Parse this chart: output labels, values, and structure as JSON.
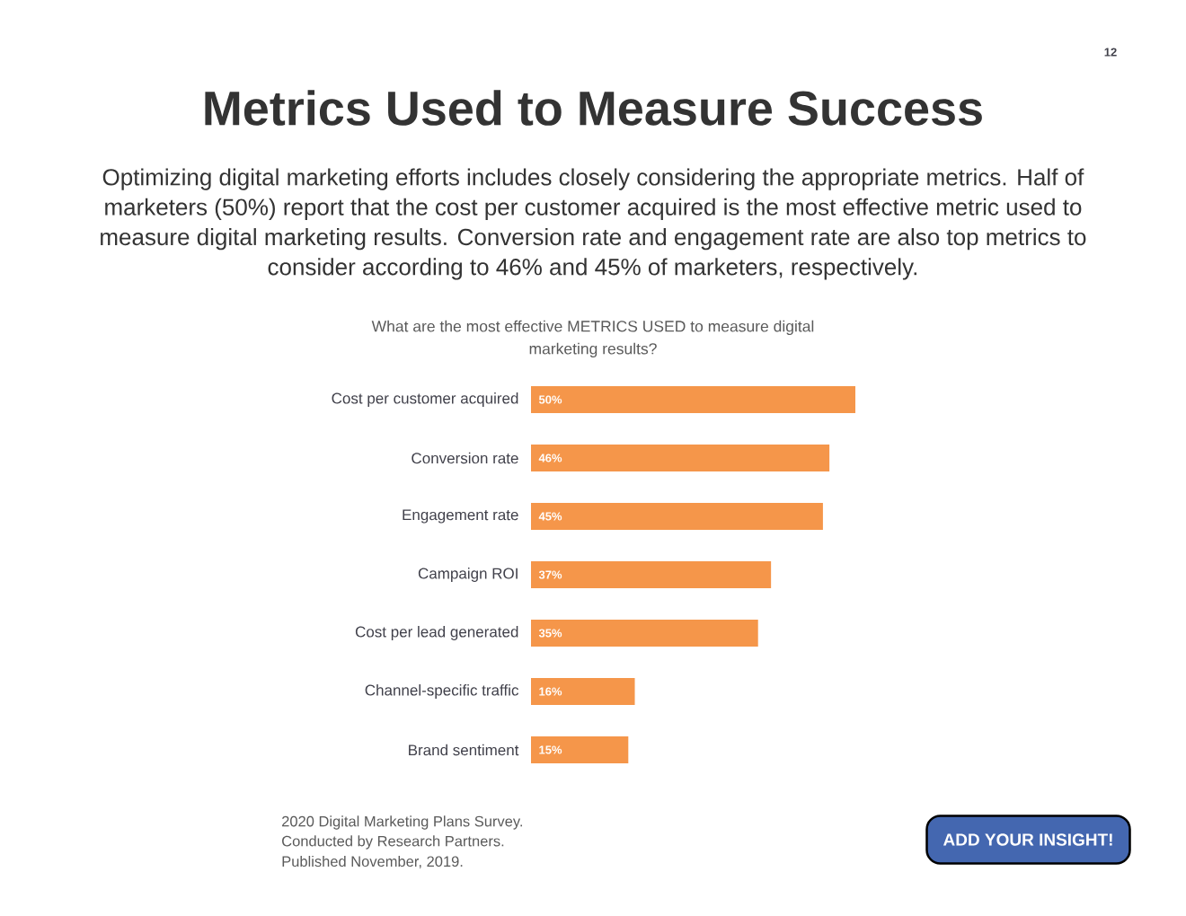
{
  "chart_data": {
    "type": "bar",
    "orientation": "horizontal",
    "title": "Metrics Used to Measure Success",
    "subtitle": "Optimizing digital marketing efforts includes closely considering the appropriate metrics. Half of marketers (50%) report that the cost per customer acquired is the most effective metric used to measure digital marketing results. Conversion rate and engagement rate are also top metrics to consider according to 46% and 45% of marketers, respectively.",
    "categories": [
      "Cost per customer acquired",
      "Conversion rate",
      "Engagement rate",
      "Campaign ROI",
      "Cost per lead generated",
      "Channel-specific traffic",
      "Brand sentiment"
    ],
    "values": [
      50,
      46,
      45,
      37,
      35,
      16,
      15
    ],
    "value_labels": [
      "50%",
      "46%",
      "45%",
      "37%",
      "35%",
      "16%",
      "15%"
    ],
    "color": "#f5964a",
    "tick_labels": "y",
    "annotations": [
      "12",
      "What are the most effective METRICS USED to measure digital marketing results?",
      "2020 Digital Marketing Plans Survey.",
      "Conducted by Research Partners.",
      "Published November, 2019.",
      "ADD YOUR INSIGHT!"
    ]
  }
}
